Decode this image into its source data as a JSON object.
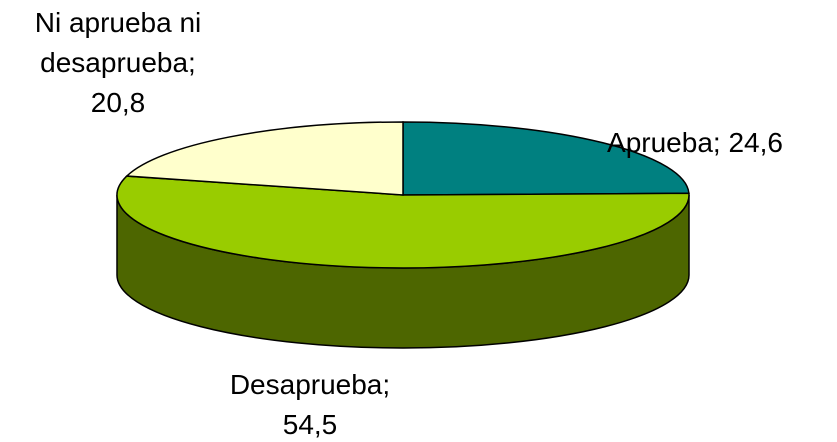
{
  "chart_data": {
    "type": "pie3d",
    "categories": [
      "Aprueba;",
      "Desaprueba;",
      "Ni aprueba ni desaprueba;"
    ],
    "values": [
      24.6,
      54.5,
      20.8
    ],
    "value_labels": [
      "24,6",
      "54,5",
      "20,8"
    ],
    "colors": [
      "#008080",
      "#99cc00",
      "#ffffcc"
    ]
  }
}
